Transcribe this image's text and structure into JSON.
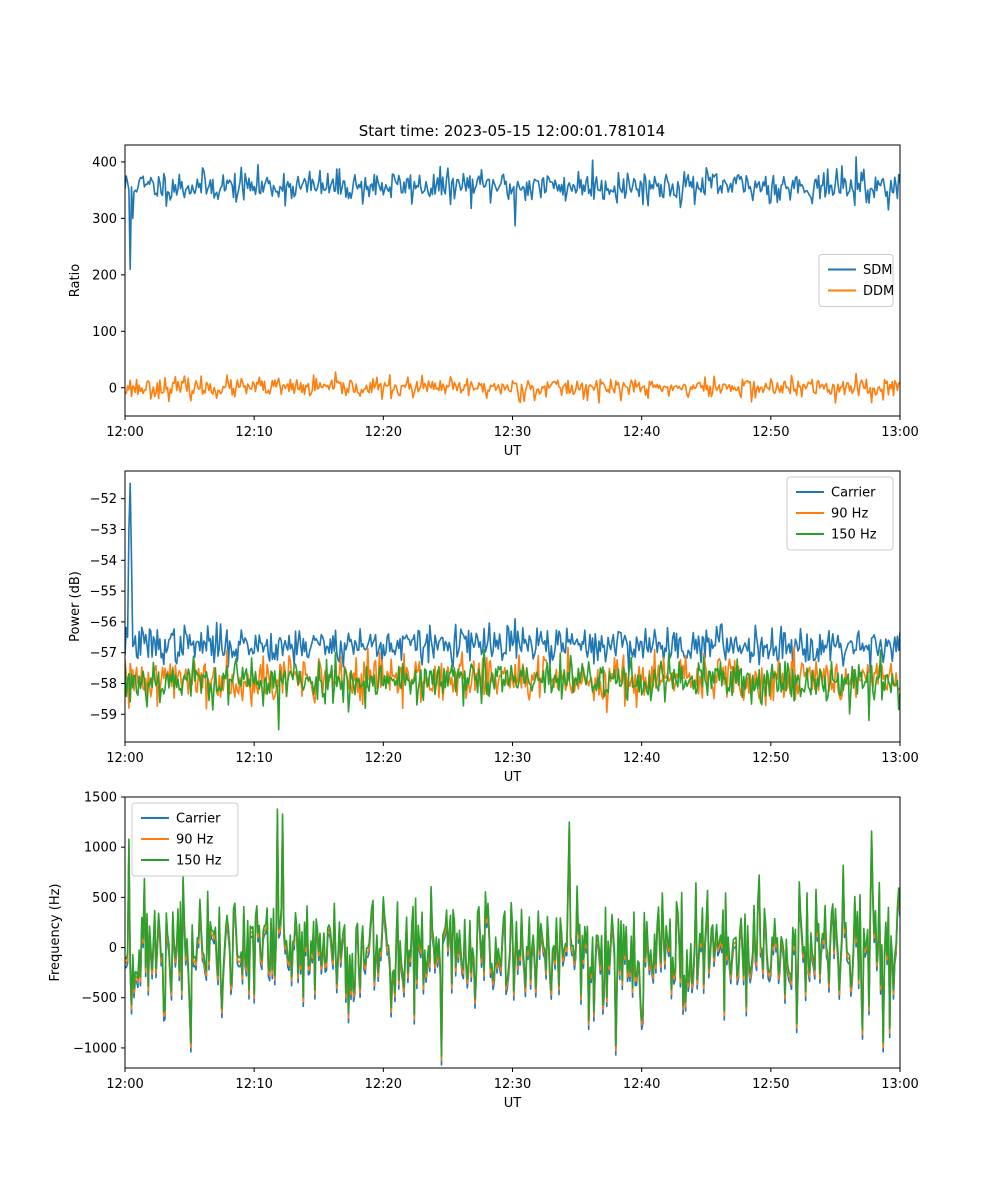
{
  "figure": {
    "title": "Start time: 2023-05-15 12:00:01.781014"
  },
  "colors": {
    "blue": "#1f77b4",
    "orange": "#ff7f0e",
    "green": "#2ca02c"
  },
  "chart_data": [
    {
      "type": "line",
      "title": "Start time: 2023-05-15 12:00:01.781014",
      "xlabel": "UT",
      "ylabel": "Ratio",
      "xlim": [
        "12:00",
        "13:00"
      ],
      "x_ticks": [
        "12:00",
        "12:10",
        "12:20",
        "12:30",
        "12:40",
        "12:50",
        "13:00"
      ],
      "ylim": [
        -50,
        430
      ],
      "y_ticks": [
        {
          "v": 400,
          "label": "400"
        },
        {
          "v": 300,
          "label": "300"
        },
        {
          "v": 200,
          "label": "200"
        },
        {
          "v": 100,
          "label": "100"
        },
        {
          "v": 0,
          "label": "0"
        }
      ],
      "legend_position": "center-right",
      "grid": false,
      "series": [
        {
          "name": "SDM",
          "color": "#1f77b4",
          "base": 357,
          "amp": 14,
          "seed": 11,
          "spikes": [
            {
              "t": 0.3,
              "v": 350
            },
            {
              "t": 0.4,
              "v": 210
            },
            {
              "t": 0.6,
              "v": 300
            },
            {
              "t": 0.8,
              "v": 350
            },
            {
              "t": 30.2,
              "v": 287
            },
            {
              "t": 36.2,
              "v": 403
            },
            {
              "t": 56.6,
              "v": 409
            },
            {
              "t": 57.6,
              "v": 327
            }
          ]
        },
        {
          "name": "DDM",
          "color": "#ff7f0e",
          "base": 0,
          "amp": 9,
          "seed": 23,
          "spikes": [
            {
              "t": 30.6,
              "v": -26
            },
            {
              "t": 55.0,
              "v": -27
            },
            {
              "t": 56.6,
              "v": 25
            }
          ]
        }
      ]
    },
    {
      "type": "line",
      "title": "",
      "xlabel": "UT",
      "ylabel": "Power (dB)",
      "xlim": [
        "12:00",
        "13:00"
      ],
      "x_ticks": [
        "12:00",
        "12:10",
        "12:20",
        "12:30",
        "12:40",
        "12:50",
        "13:00"
      ],
      "ylim": [
        -59.9,
        -51.1
      ],
      "y_ticks": [
        {
          "v": -52,
          "label": "−52"
        },
        {
          "v": -53,
          "label": "−53"
        },
        {
          "v": -54,
          "label": "−54"
        },
        {
          "v": -55,
          "label": "−55"
        },
        {
          "v": -56,
          "label": "−56"
        },
        {
          "v": -57,
          "label": "−57"
        },
        {
          "v": -58,
          "label": "−58"
        },
        {
          "v": -59,
          "label": "−59"
        }
      ],
      "legend_position": "top-right",
      "grid": false,
      "series": [
        {
          "name": "Carrier",
          "color": "#1f77b4",
          "base": -56.75,
          "amp": 0.3,
          "seed": 37,
          "spikes": [
            {
              "t": 0.2,
              "v": -56.5
            },
            {
              "t": 0.3,
              "v": -53.0
            },
            {
              "t": 0.4,
              "v": -51.5
            },
            {
              "t": 0.5,
              "v": -54.0
            },
            {
              "t": 0.6,
              "v": -56.8
            },
            {
              "t": 30.2,
              "v": -55.9
            }
          ]
        },
        {
          "name": "90 Hz",
          "color": "#ff7f0e",
          "base": -57.85,
          "amp": 0.38,
          "seed": 41,
          "spikes": [
            {
              "t": 0.3,
              "v": -58.8
            },
            {
              "t": 51.8,
              "v": -56.8
            }
          ]
        },
        {
          "name": "150 Hz",
          "color": "#2ca02c",
          "base": -57.9,
          "amp": 0.36,
          "seed": 53,
          "spikes": [
            {
              "t": 11.9,
              "v": -59.5
            },
            {
              "t": 57.6,
              "v": -59.2
            },
            {
              "t": 0.4,
              "v": -58.6
            }
          ]
        }
      ]
    },
    {
      "type": "line",
      "title": "",
      "xlabel": "UT",
      "ylabel": "Frequency (Hz)",
      "xlim": [
        "12:00",
        "13:00"
      ],
      "x_ticks": [
        "12:00",
        "12:10",
        "12:20",
        "12:30",
        "12:40",
        "12:50",
        "13:00"
      ],
      "ylim": [
        -1200,
        1500
      ],
      "y_ticks": [
        {
          "v": 1500,
          "label": "1500"
        },
        {
          "v": 1000,
          "label": "1000"
        },
        {
          "v": 500,
          "label": "500"
        },
        {
          "v": 0,
          "label": "0"
        },
        {
          "v": -500,
          "label": "−500"
        },
        {
          "v": -1000,
          "label": "−1000"
        }
      ],
      "legend_position": "top-left",
      "grid": false,
      "series": [
        {
          "name": "Carrier",
          "color": "#1f77b4",
          "base": -90,
          "amp": 300,
          "seed": 71,
          "offset_of": 2,
          "offset": -90
        },
        {
          "name": "90 Hz",
          "color": "#ff7f0e",
          "base": -45,
          "amp": 300,
          "seed": 71,
          "offset_of": 2,
          "offset": -45
        },
        {
          "name": "150 Hz",
          "color": "#2ca02c",
          "base": 0,
          "amp": 300,
          "seed": 71,
          "spikes": [
            {
              "t": 0.3,
              "v": 1080
            },
            {
              "t": 11.8,
              "v": 1380
            },
            {
              "t": 12.2,
              "v": 1330
            },
            {
              "t": 24.5,
              "v": -1080
            },
            {
              "t": 34.4,
              "v": 1250
            },
            {
              "t": 38.0,
              "v": -980
            },
            {
              "t": 57.8,
              "v": 1160
            },
            {
              "t": 5.1,
              "v": -950
            }
          ]
        }
      ]
    }
  ]
}
